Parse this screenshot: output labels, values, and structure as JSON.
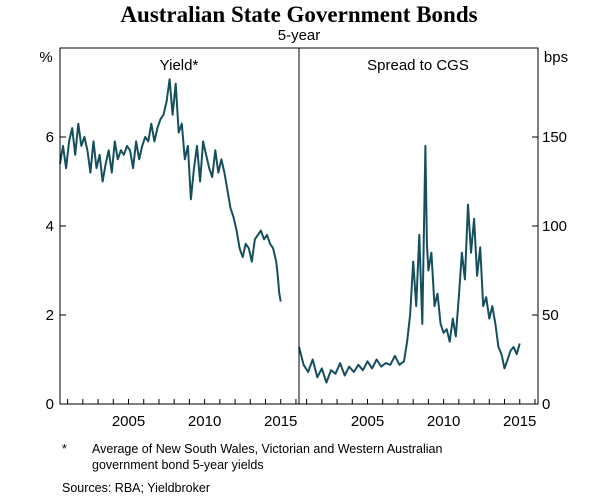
{
  "chart_data": {
    "type": "line",
    "title": "Australian State Government Bonds",
    "subtitle": "5-year",
    "left_unit": "%",
    "right_unit": "bps",
    "grid": false,
    "panels": [
      {
        "title": "Yield*",
        "xlim": [
          2000.5,
          2016.2
        ],
        "ylim": [
          0,
          8
        ],
        "y_ticks": [
          0,
          2,
          4,
          6
        ],
        "x_ticks": [
          2005,
          2010,
          2015
        ],
        "series": [
          {
            "color": "#154f5f",
            "x": [
              2000.5,
              2000.7,
              2000.9,
              2001.1,
              2001.3,
              2001.5,
              2001.7,
              2001.9,
              2002.1,
              2002.3,
              2002.5,
              2002.7,
              2002.9,
              2003.1,
              2003.3,
              2003.5,
              2003.7,
              2003.9,
              2004.1,
              2004.3,
              2004.5,
              2004.7,
              2004.9,
              2005.1,
              2005.3,
              2005.5,
              2005.7,
              2005.9,
              2006.1,
              2006.3,
              2006.5,
              2006.7,
              2006.9,
              2007.1,
              2007.3,
              2007.5,
              2007.7,
              2007.9,
              2008.1,
              2008.3,
              2008.5,
              2008.7,
              2008.9,
              2009.1,
              2009.3,
              2009.5,
              2009.7,
              2009.9,
              2010.1,
              2010.3,
              2010.5,
              2010.7,
              2010.9,
              2011.1,
              2011.3,
              2011.5,
              2011.7,
              2011.9,
              2012.1,
              2012.3,
              2012.5,
              2012.7,
              2012.9,
              2013.1,
              2013.3,
              2013.5,
              2013.7,
              2013.9,
              2014.1,
              2014.3,
              2014.5,
              2014.7,
              2014.8,
              2014.9,
              2015.0
            ],
            "y": [
              5.4,
              5.8,
              5.3,
              5.9,
              6.2,
              5.6,
              6.3,
              5.8,
              6.0,
              5.7,
              5.2,
              5.9,
              5.3,
              5.6,
              5.0,
              5.4,
              5.7,
              5.2,
              5.9,
              5.5,
              5.7,
              5.6,
              5.8,
              5.7,
              5.3,
              5.9,
              5.5,
              5.8,
              6.0,
              5.9,
              6.3,
              5.9,
              6.2,
              6.4,
              6.5,
              6.8,
              7.3,
              6.5,
              7.2,
              6.1,
              6.3,
              5.5,
              5.8,
              4.6,
              5.3,
              5.8,
              5.0,
              5.9,
              5.6,
              5.3,
              5.1,
              5.7,
              5.2,
              5.5,
              5.2,
              4.8,
              4.4,
              4.2,
              3.9,
              3.5,
              3.3,
              3.6,
              3.5,
              3.2,
              3.7,
              3.8,
              3.9,
              3.7,
              3.8,
              3.6,
              3.5,
              3.2,
              2.9,
              2.5,
              2.3
            ]
          }
        ]
      },
      {
        "title": "Spread to CGS",
        "xlim": [
          2000.5,
          2016.2
        ],
        "ylim": [
          0,
          200
        ],
        "y_ticks": [
          0,
          50,
          100,
          150
        ],
        "x_ticks": [
          2005,
          2010,
          2015
        ],
        "series": [
          {
            "color": "#154f5f",
            "x": [
              2000.5,
              2000.8,
              2001.1,
              2001.4,
              2001.7,
              2002.0,
              2002.3,
              2002.6,
              2002.9,
              2003.2,
              2003.5,
              2003.8,
              2004.1,
              2004.4,
              2004.7,
              2005.0,
              2005.3,
              2005.6,
              2005.9,
              2006.2,
              2006.5,
              2006.8,
              2007.1,
              2007.4,
              2007.6,
              2007.8,
              2008.0,
              2008.2,
              2008.4,
              2008.6,
              2008.8,
              2008.9,
              2009.0,
              2009.2,
              2009.4,
              2009.6,
              2009.8,
              2010.0,
              2010.2,
              2010.4,
              2010.6,
              2010.8,
              2011.0,
              2011.2,
              2011.4,
              2011.6,
              2011.8,
              2012.0,
              2012.2,
              2012.4,
              2012.6,
              2012.8,
              2013.0,
              2013.2,
              2013.4,
              2013.6,
              2013.8,
              2014.0,
              2014.2,
              2014.4,
              2014.6,
              2014.8,
              2015.0
            ],
            "y": [
              32,
              22,
              18,
              25,
              15,
              20,
              12,
              19,
              17,
              23,
              16,
              21,
              18,
              22,
              19,
              24,
              20,
              25,
              21,
              23,
              22,
              27,
              22,
              24,
              35,
              50,
              80,
              55,
              95,
              45,
              145,
              90,
              75,
              85,
              55,
              62,
              45,
              40,
              42,
              35,
              48,
              38,
              60,
              85,
              70,
              112,
              85,
              104,
              72,
              88,
              55,
              60,
              48,
              55,
              45,
              32,
              28,
              20,
              25,
              30,
              32,
              28,
              34
            ]
          }
        ]
      }
    ],
    "footnote": {
      "marker": "*",
      "lines": [
        "Average of New South Wales, Victorian and Western Australian",
        "government bond 5-year yields"
      ]
    },
    "sources": "Sources:  RBA; Yieldbroker"
  }
}
